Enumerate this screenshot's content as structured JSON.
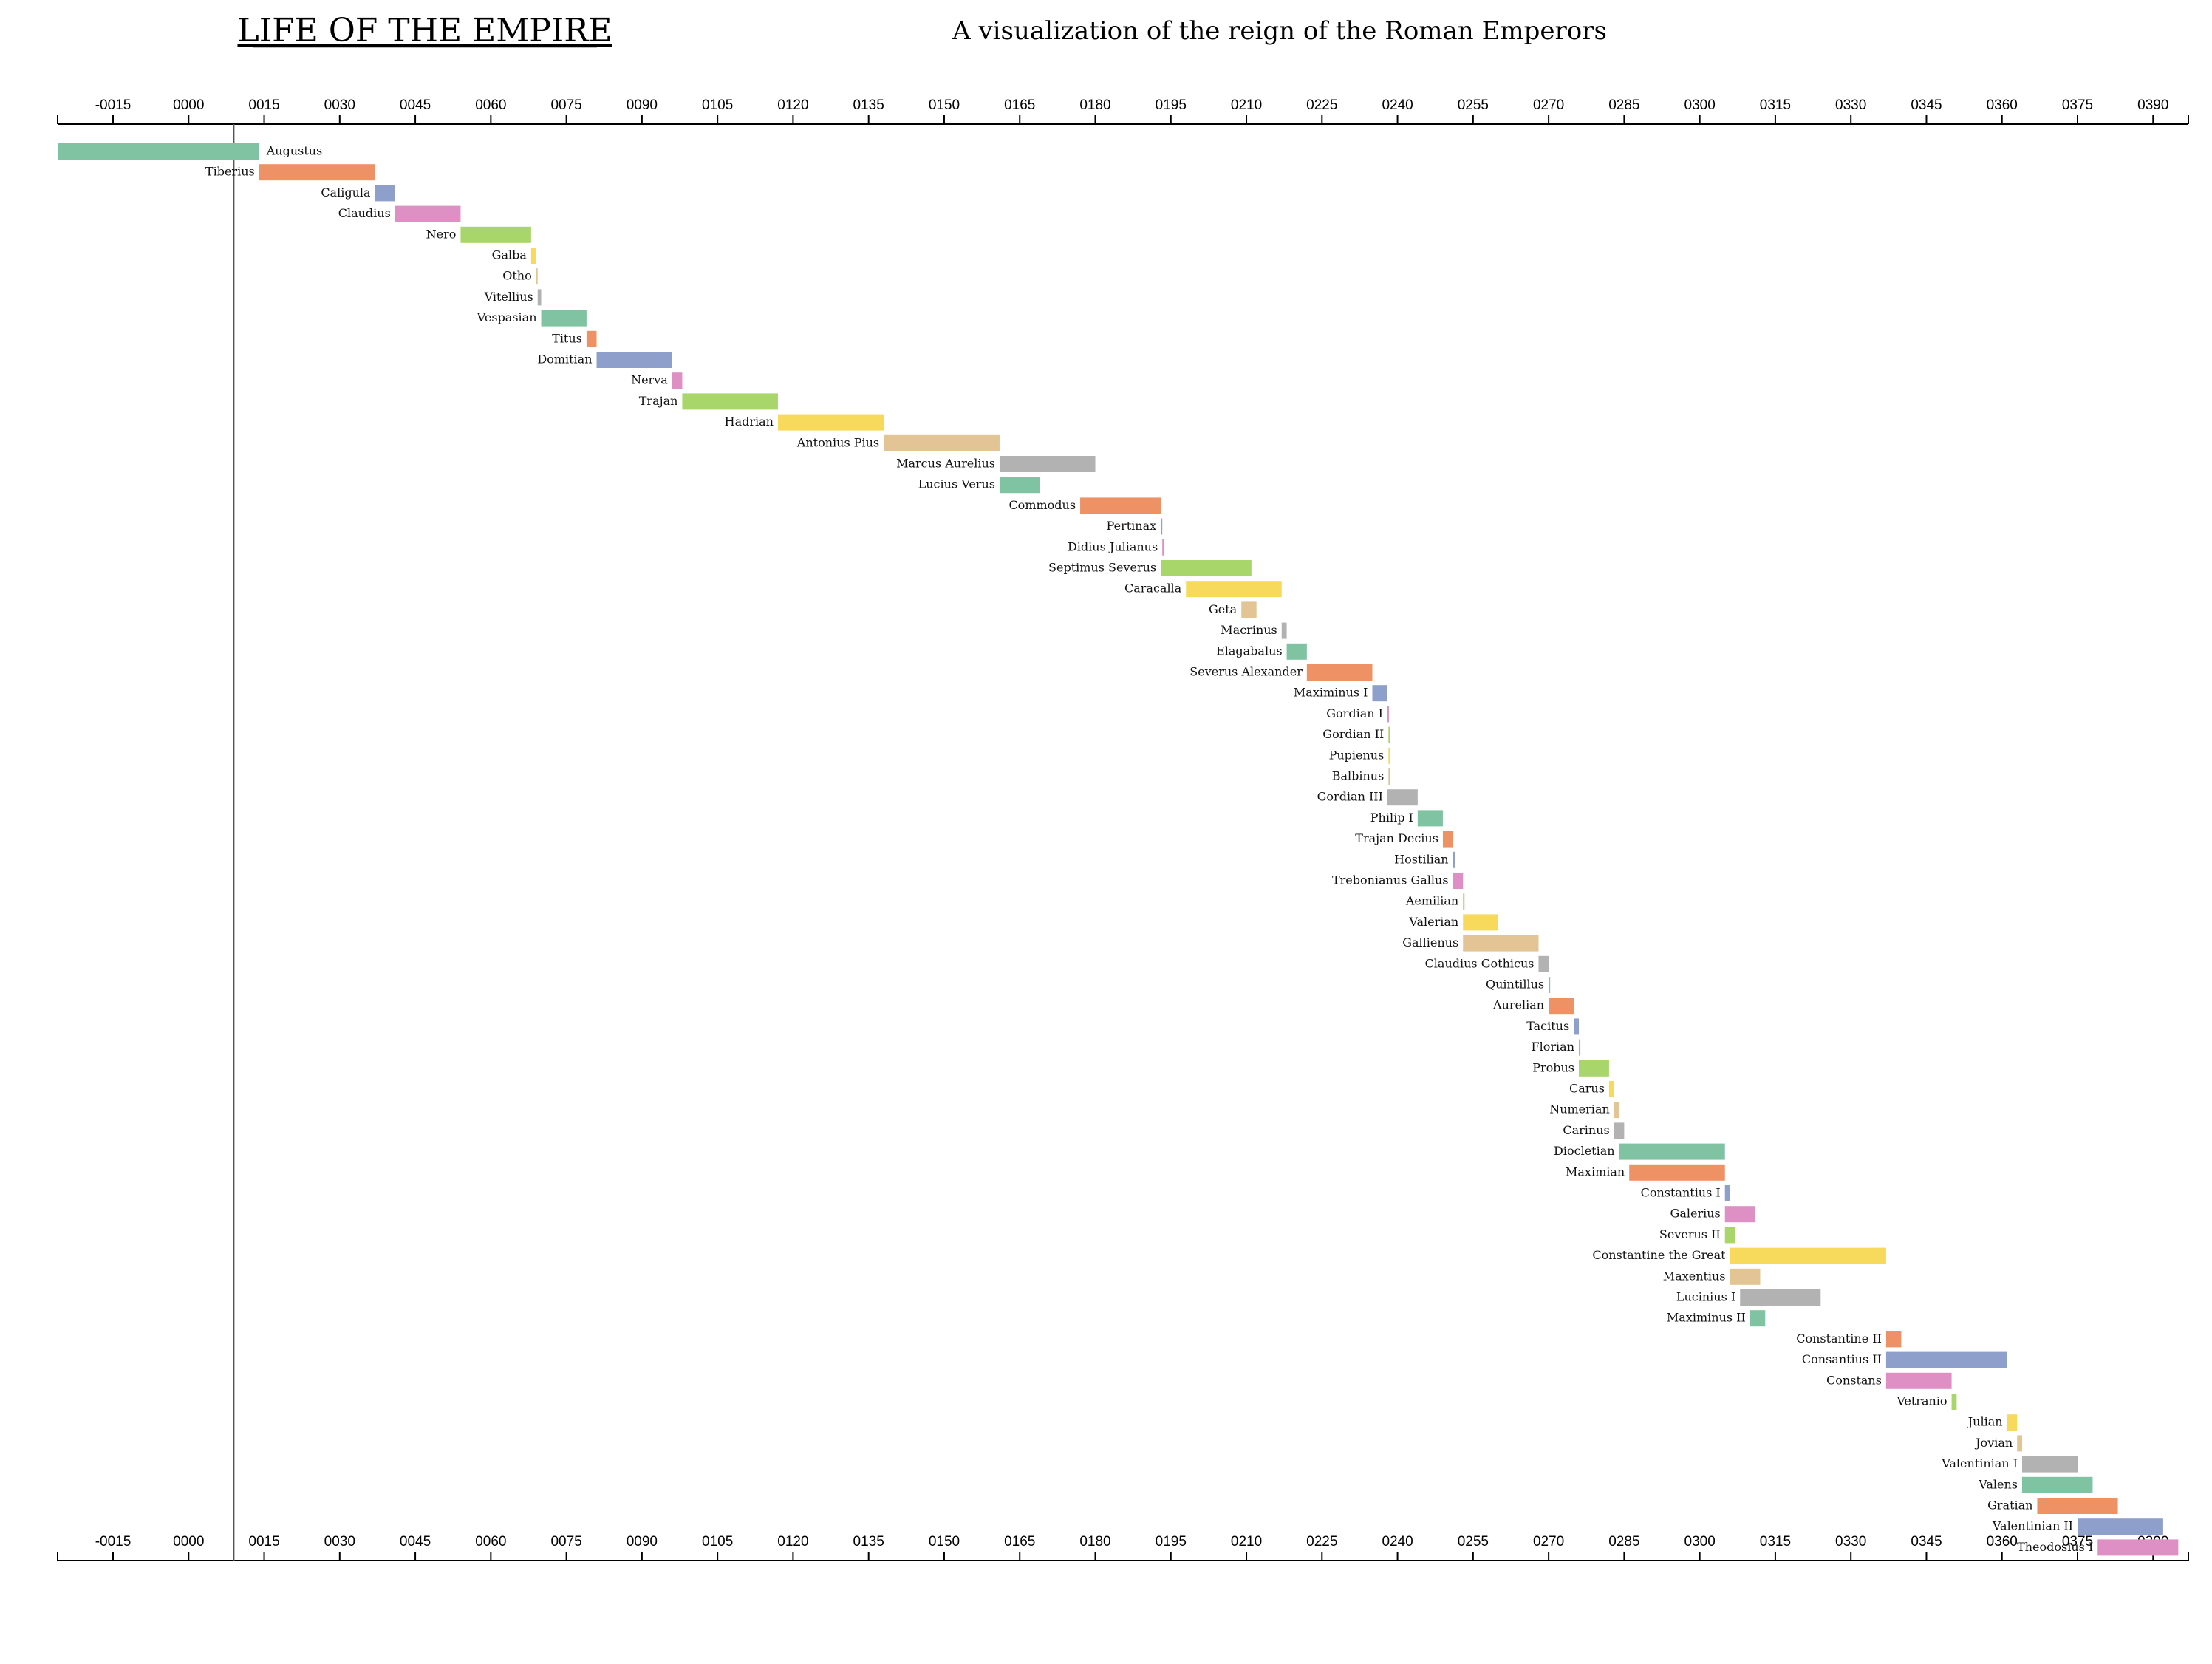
{
  "header": {
    "title": "LIFE OF THE EMPIRE",
    "subtitle": "A visualization of the reign of the Roman Emperors"
  },
  "chart_data": {
    "type": "timeline",
    "xlim": [
      -26,
      397
    ],
    "ticks": [
      "-0015",
      "0000",
      "0015",
      "0030",
      "0045",
      "0060",
      "0075",
      "0090",
      "0105",
      "0120",
      "0135",
      "0150",
      "0165",
      "0180",
      "0195",
      "0210",
      "0225",
      "0240",
      "0255",
      "0270",
      "0285",
      "0300",
      "0315",
      "0330",
      "0345",
      "0360",
      "0375",
      "0390"
    ],
    "tick_values": [
      -15,
      0,
      15,
      30,
      45,
      60,
      75,
      90,
      105,
      120,
      135,
      150,
      165,
      180,
      195,
      210,
      225,
      240,
      255,
      270,
      285,
      300,
      315,
      330,
      345,
      360,
      375,
      390
    ],
    "reference_line": 9,
    "palette": [
      "#7fc3a2",
      "#ee9164",
      "#8f9fcb",
      "#de8fc4",
      "#a9d66a",
      "#f7d95c",
      "#e3c595",
      "#b2b2b2"
    ],
    "emperors": [
      {
        "name": "Augustus",
        "start": -26,
        "end": 14
      },
      {
        "name": "Tiberius",
        "start": 14,
        "end": 37
      },
      {
        "name": "Caligula",
        "start": 37,
        "end": 41
      },
      {
        "name": "Claudius",
        "start": 41,
        "end": 54
      },
      {
        "name": "Nero",
        "start": 54,
        "end": 68
      },
      {
        "name": "Galba",
        "start": 68,
        "end": 69
      },
      {
        "name": "Otho",
        "start": 69,
        "end": 69.3
      },
      {
        "name": "Vitellius",
        "start": 69.3,
        "end": 70
      },
      {
        "name": "Vespasian",
        "start": 70,
        "end": 79
      },
      {
        "name": "Titus",
        "start": 79,
        "end": 81
      },
      {
        "name": "Domitian",
        "start": 81,
        "end": 96
      },
      {
        "name": "Nerva",
        "start": 96,
        "end": 98
      },
      {
        "name": "Trajan",
        "start": 98,
        "end": 117
      },
      {
        "name": "Hadrian",
        "start": 117,
        "end": 138
      },
      {
        "name": "Antonius Pius",
        "start": 138,
        "end": 161
      },
      {
        "name": "Marcus Aurelius",
        "start": 161,
        "end": 180
      },
      {
        "name": "Lucius Verus",
        "start": 161,
        "end": 169
      },
      {
        "name": "Commodus",
        "start": 177,
        "end": 193
      },
      {
        "name": "Pertinax",
        "start": 193,
        "end": 193.3
      },
      {
        "name": "Didius Julianus",
        "start": 193.3,
        "end": 193.6
      },
      {
        "name": "Septimus Severus",
        "start": 193,
        "end": 211
      },
      {
        "name": "Caracalla",
        "start": 198,
        "end": 217
      },
      {
        "name": "Geta",
        "start": 209,
        "end": 212
      },
      {
        "name": "Macrinus",
        "start": 217,
        "end": 218
      },
      {
        "name": "Elagabalus",
        "start": 218,
        "end": 222
      },
      {
        "name": "Severus Alexander",
        "start": 222,
        "end": 235
      },
      {
        "name": "Maximinus I",
        "start": 235,
        "end": 238
      },
      {
        "name": "Gordian I",
        "start": 238,
        "end": 238.2
      },
      {
        "name": "Gordian II",
        "start": 238.2,
        "end": 238.4
      },
      {
        "name": "Pupienus",
        "start": 238.2,
        "end": 238.5
      },
      {
        "name": "Balbinus",
        "start": 238.2,
        "end": 238.5
      },
      {
        "name": "Gordian III",
        "start": 238,
        "end": 244
      },
      {
        "name": "Philip I",
        "start": 244,
        "end": 249
      },
      {
        "name": "Trajan Decius",
        "start": 249,
        "end": 251
      },
      {
        "name": "Hostilian",
        "start": 251,
        "end": 251.5
      },
      {
        "name": "Trebonianus Gallus",
        "start": 251,
        "end": 253
      },
      {
        "name": "Aemilian",
        "start": 253,
        "end": 253.3
      },
      {
        "name": "Valerian",
        "start": 253,
        "end": 260
      },
      {
        "name": "Gallienus",
        "start": 253,
        "end": 268
      },
      {
        "name": "Claudius Gothicus",
        "start": 268,
        "end": 270
      },
      {
        "name": "Quintillus",
        "start": 270,
        "end": 270.3
      },
      {
        "name": "Aurelian",
        "start": 270,
        "end": 275
      },
      {
        "name": "Tacitus",
        "start": 275,
        "end": 276
      },
      {
        "name": "Florian",
        "start": 276,
        "end": 276.3
      },
      {
        "name": "Probus",
        "start": 276,
        "end": 282
      },
      {
        "name": "Carus",
        "start": 282,
        "end": 283
      },
      {
        "name": "Numerian",
        "start": 283,
        "end": 284
      },
      {
        "name": "Carinus",
        "start": 283,
        "end": 285
      },
      {
        "name": "Diocletian",
        "start": 284,
        "end": 305
      },
      {
        "name": "Maximian",
        "start": 286,
        "end": 305
      },
      {
        "name": "Constantius I",
        "start": 305,
        "end": 306
      },
      {
        "name": "Galerius",
        "start": 305,
        "end": 311
      },
      {
        "name": "Severus II",
        "start": 305,
        "end": 307
      },
      {
        "name": "Constantine the Great",
        "start": 306,
        "end": 337
      },
      {
        "name": "Maxentius",
        "start": 306,
        "end": 312
      },
      {
        "name": "Lucinius I",
        "start": 308,
        "end": 324
      },
      {
        "name": "Maximinus II",
        "start": 310,
        "end": 313
      },
      {
        "name": "Constantine II",
        "start": 337,
        "end": 340
      },
      {
        "name": "Consantius II",
        "start": 337,
        "end": 361
      },
      {
        "name": "Constans",
        "start": 337,
        "end": 350
      },
      {
        "name": "Vetranio",
        "start": 350,
        "end": 351
      },
      {
        "name": "Julian",
        "start": 361,
        "end": 363
      },
      {
        "name": "Jovian",
        "start": 363,
        "end": 364
      },
      {
        "name": "Valentinian I",
        "start": 364,
        "end": 375
      },
      {
        "name": "Valens",
        "start": 364,
        "end": 378
      },
      {
        "name": "Gratian",
        "start": 367,
        "end": 383
      },
      {
        "name": "Valentinian II",
        "start": 375,
        "end": 392
      },
      {
        "name": "Theodosius I",
        "start": 379,
        "end": 395
      }
    ]
  }
}
